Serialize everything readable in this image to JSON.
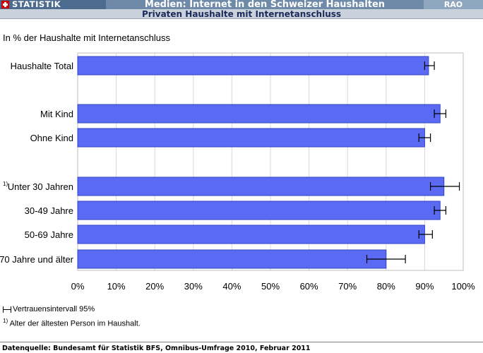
{
  "header": {
    "brand": "STATISTIK",
    "title": "Medien: Internet in den Schweizer Haushalten",
    "badge": "RAO",
    "subtitle": "Privaten Haushalte mit Internetanschluss"
  },
  "unit_label": "In % der Haushalte mit Internetanschluss",
  "legend": {
    "ci_label": "Vertrauensintervall 95%",
    "note_marker": "1)",
    "note_text": "Alter der ältesten Person im Haushalt."
  },
  "source": "Datenquelle: Bundesamt für Statistik BFS, Omnibus-Umfrage 2010, Februar 2011",
  "colors": {
    "bar": "#5b6af2",
    "bar_border": "#3344c8",
    "grid": "#d9d9d9"
  },
  "chart_data": {
    "type": "bar",
    "orientation": "horizontal",
    "xlim": [
      0,
      100
    ],
    "grid": true,
    "ticks": [
      "0%",
      "10%",
      "20%",
      "30%",
      "40%",
      "50%",
      "60%",
      "70%",
      "80%",
      "90%",
      "100%"
    ],
    "categories": [
      "Haushalte Total",
      "Mit Kind",
      "Ohne Kind",
      "Unter 30 Jahren",
      "30-49 Jahre",
      "50-69 Jahre",
      "70 Jahre und älter"
    ],
    "category_notes": [
      "",
      "",
      "",
      "1)",
      "",
      "",
      ""
    ],
    "values": [
      91,
      94,
      90,
      95,
      94,
      90,
      80
    ],
    "ci_low": [
      90,
      92.5,
      88.5,
      91.5,
      92.5,
      88.5,
      75
    ],
    "ci_high": [
      92.5,
      95.5,
      91.5,
      99,
      95.5,
      92,
      85
    ]
  }
}
